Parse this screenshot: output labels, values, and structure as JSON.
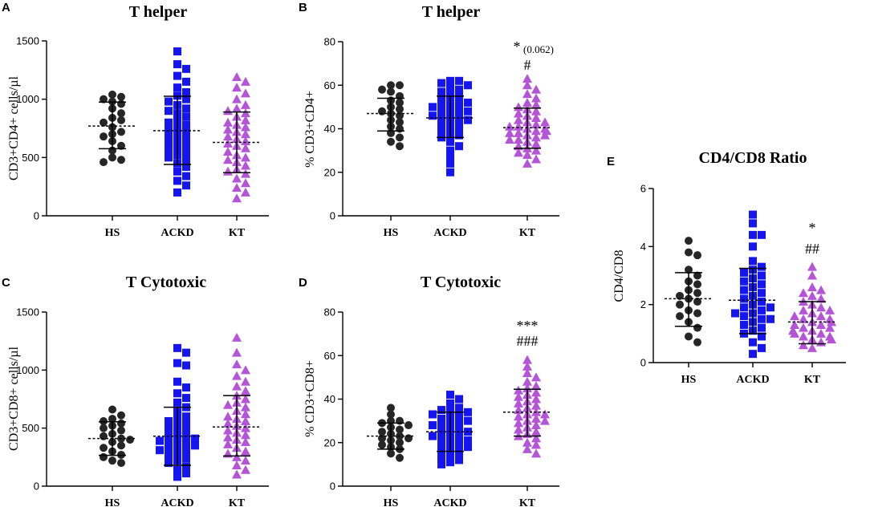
{
  "chart_data": [
    {
      "id": "A",
      "panel_letter": "A",
      "type": "scatter",
      "title": "T helper",
      "xlabel": "",
      "ylabel": "CD3+CD4+ cells/µl",
      "ylim": [
        0,
        1500
      ],
      "yticks": [
        "0",
        "500",
        "1000",
        "1500"
      ],
      "ytick_values": [
        0,
        500,
        1000,
        1500
      ],
      "categories": [
        "HS",
        "ACKD",
        "KT"
      ],
      "series": [
        {
          "name": "HS",
          "marker": "circle",
          "color": "#262626",
          "mean": 770,
          "sd_low": 575,
          "sd_high": 975,
          "values": [
            460,
            480,
            500,
            560,
            600,
            640,
            680,
            700,
            720,
            760,
            800,
            820,
            840,
            880,
            920,
            960,
            980,
            1000,
            1020,
            1040
          ]
        },
        {
          "name": "ACKD",
          "marker": "square",
          "color": "#1515f0",
          "mean": 730,
          "sd_low": 440,
          "sd_high": 1025,
          "values": [
            200,
            260,
            300,
            340,
            380,
            420,
            450,
            480,
            500,
            520,
            540,
            560,
            580,
            600,
            620,
            640,
            660,
            680,
            700,
            720,
            740,
            760,
            780,
            800,
            820,
            850,
            880,
            900,
            920,
            950,
            980,
            1000,
            1030,
            1060,
            1100,
            1150,
            1200,
            1260,
            1300,
            1410
          ]
        },
        {
          "name": "KT",
          "marker": "triangle",
          "color": "#b455d8",
          "mean": 630,
          "sd_low": 370,
          "sd_high": 890,
          "values": [
            150,
            200,
            240,
            280,
            320,
            360,
            380,
            400,
            430,
            460,
            480,
            500,
            520,
            550,
            580,
            600,
            620,
            640,
            660,
            680,
            700,
            720,
            740,
            760,
            780,
            800,
            820,
            850,
            880,
            900,
            920,
            950,
            1000,
            1050,
            1100,
            1150,
            1190
          ]
        }
      ],
      "annotations": {
        "star": "",
        "sub": "",
        "hash": ""
      }
    },
    {
      "id": "B",
      "panel_letter": "B",
      "type": "scatter",
      "title": "T helper",
      "xlabel": "",
      "ylabel": "% CD3+CD4+",
      "ylim": [
        0,
        80
      ],
      "yticks": [
        "0",
        "20",
        "40",
        "60",
        "80"
      ],
      "ytick_values": [
        0,
        20,
        40,
        60,
        80
      ],
      "categories": [
        "HS",
        "ACKD",
        "KT"
      ],
      "series": [
        {
          "name": "HS",
          "marker": "circle",
          "color": "#262626",
          "mean": 47,
          "sd_low": 39,
          "sd_high": 54,
          "values": [
            32,
            34,
            36,
            38,
            40,
            41,
            43,
            44,
            46,
            47,
            48,
            49,
            50,
            52,
            53,
            55,
            57,
            58,
            60,
            60
          ]
        },
        {
          "name": "ACKD",
          "marker": "square",
          "color": "#1515f0",
          "mean": 45,
          "sd_low": 36,
          "sd_high": 55,
          "values": [
            20,
            24,
            27,
            30,
            32,
            34,
            36,
            37,
            38,
            39,
            40,
            41,
            42,
            43,
            44,
            44,
            45,
            46,
            46,
            47,
            48,
            48,
            49,
            50,
            50,
            51,
            52,
            52,
            53,
            54,
            55,
            56,
            57,
            58,
            59,
            60,
            61,
            62,
            62
          ]
        },
        {
          "name": "KT",
          "marker": "triangle",
          "color": "#b455d8",
          "mean": 40.5,
          "sd_low": 31,
          "sd_high": 49.5,
          "values": [
            24,
            26,
            28,
            29,
            30,
            31,
            32,
            33,
            34,
            35,
            35,
            36,
            37,
            37,
            38,
            38,
            39,
            39,
            40,
            40,
            41,
            41,
            42,
            43,
            43,
            44,
            45,
            46,
            47,
            48,
            49,
            50,
            51,
            52,
            54,
            56,
            58,
            60,
            63
          ]
        }
      ],
      "annotations": {
        "star": "*",
        "sub": "(0.062)",
        "hash": "#"
      }
    },
    {
      "id": "C",
      "panel_letter": "C",
      "type": "scatter",
      "title": "T Cytotoxic",
      "xlabel": "",
      "ylabel": "CD3+CD8+ cells/µl",
      "ylim": [
        0,
        1500
      ],
      "yticks": [
        "0",
        "500",
        "1000",
        "1500"
      ],
      "ytick_values": [
        0,
        500,
        1000,
        1500
      ],
      "categories": [
        "HS",
        "ACKD",
        "KT"
      ],
      "series": [
        {
          "name": "HS",
          "marker": "circle",
          "color": "#262626",
          "mean": 410,
          "sd_low": 265,
          "sd_high": 555,
          "values": [
            200,
            220,
            250,
            270,
            300,
            330,
            350,
            380,
            400,
            410,
            430,
            450,
            480,
            500,
            520,
            540,
            560,
            580,
            610,
            660
          ]
        },
        {
          "name": "ACKD",
          "marker": "square",
          "color": "#1515f0",
          "mean": 430,
          "sd_low": 180,
          "sd_high": 680,
          "values": [
            80,
            110,
            140,
            170,
            200,
            220,
            240,
            260,
            280,
            300,
            310,
            320,
            340,
            350,
            360,
            380,
            390,
            400,
            410,
            420,
            440,
            460,
            480,
            500,
            520,
            540,
            560,
            580,
            600,
            640,
            680,
            720,
            760,
            800,
            850,
            900,
            1040,
            1060,
            1150,
            1190
          ]
        },
        {
          "name": "KT",
          "marker": "triangle",
          "color": "#b455d8",
          "mean": 510,
          "sd_low": 260,
          "sd_high": 780,
          "values": [
            100,
            140,
            180,
            220,
            250,
            280,
            300,
            330,
            360,
            380,
            400,
            420,
            440,
            460,
            480,
            500,
            520,
            540,
            560,
            580,
            600,
            620,
            650,
            680,
            700,
            720,
            750,
            780,
            820,
            860,
            900,
            950,
            1000,
            1050,
            1150,
            1280
          ]
        }
      ],
      "annotations": {
        "star": "",
        "sub": "",
        "hash": ""
      }
    },
    {
      "id": "D",
      "panel_letter": "D",
      "type": "scatter",
      "title": "T Cytotoxic",
      "xlabel": "",
      "ylabel": "% CD3+CD8+",
      "ylim": [
        0,
        80
      ],
      "yticks": [
        "0",
        "20",
        "40",
        "60",
        "80"
      ],
      "ytick_values": [
        0,
        20,
        40,
        60,
        80
      ],
      "categories": [
        "HS",
        "ACKD",
        "KT"
      ],
      "series": [
        {
          "name": "HS",
          "marker": "circle",
          "color": "#262626",
          "mean": 23,
          "sd_low": 17,
          "sd_high": 29,
          "values": [
            13,
            15,
            17,
            18,
            19,
            20,
            21,
            22,
            22,
            23,
            24,
            25,
            26,
            27,
            28,
            29,
            30,
            30,
            33,
            36
          ]
        },
        {
          "name": "ACKD",
          "marker": "square",
          "color": "#1515f0",
          "mean": 25,
          "sd_low": 16,
          "sd_high": 34,
          "values": [
            10,
            11,
            12,
            13,
            14,
            15,
            16,
            17,
            18,
            18,
            19,
            20,
            21,
            21,
            22,
            23,
            23,
            24,
            25,
            25,
            26,
            27,
            28,
            28,
            29,
            30,
            30,
            31,
            32,
            33,
            33,
            34,
            35,
            35,
            36,
            38,
            40,
            42
          ]
        },
        {
          "name": "KT",
          "marker": "triangle",
          "color": "#b455d8",
          "mean": 34,
          "sd_low": 23,
          "sd_high": 44.5,
          "values": [
            15,
            17,
            19,
            20,
            22,
            23,
            24,
            25,
            26,
            27,
            28,
            29,
            30,
            30,
            31,
            32,
            33,
            33,
            34,
            35,
            36,
            37,
            38,
            39,
            40,
            41,
            42,
            43,
            44,
            45,
            46,
            48,
            50,
            52,
            55,
            58
          ]
        }
      ],
      "annotations": {
        "star": "***",
        "sub": "",
        "hash": "###"
      }
    },
    {
      "id": "E",
      "panel_letter": "E",
      "type": "scatter",
      "title": "CD4/CD8 Ratio",
      "xlabel": "",
      "ylabel": "CD4/CD8",
      "ylim": [
        0,
        6
      ],
      "yticks": [
        "0",
        "2",
        "4",
        "6"
      ],
      "ytick_values": [
        0,
        2,
        4,
        6
      ],
      "categories": [
        "HS",
        "ACKD",
        "KT"
      ],
      "series": [
        {
          "name": "HS",
          "marker": "circle",
          "color": "#262626",
          "mean": 2.2,
          "sd_low": 1.25,
          "sd_high": 3.1,
          "values": [
            0.7,
            0.9,
            1.2,
            1.4,
            1.6,
            1.7,
            1.8,
            2.0,
            2.1,
            2.2,
            2.3,
            2.4,
            2.5,
            2.7,
            2.8,
            3.0,
            3.2,
            3.7,
            3.8,
            4.2
          ]
        },
        {
          "name": "ACKD",
          "marker": "square",
          "color": "#1515f0",
          "mean": 2.15,
          "sd_low": 1.0,
          "sd_high": 3.25,
          "values": [
            0.3,
            0.5,
            0.7,
            0.9,
            1.0,
            1.1,
            1.2,
            1.3,
            1.4,
            1.5,
            1.5,
            1.6,
            1.7,
            1.7,
            1.8,
            1.9,
            1.9,
            2.0,
            2.1,
            2.2,
            2.3,
            2.4,
            2.5,
            2.6,
            2.7,
            2.8,
            2.9,
            3.0,
            3.1,
            3.2,
            3.3,
            3.5,
            4.0,
            4.4,
            4.4,
            4.8,
            5.1
          ]
        },
        {
          "name": "KT",
          "marker": "triangle",
          "color": "#b455d8",
          "mean": 1.4,
          "sd_low": 0.65,
          "sd_high": 2.1,
          "values": [
            0.5,
            0.6,
            0.7,
            0.8,
            0.8,
            0.9,
            0.9,
            1.0,
            1.0,
            1.1,
            1.1,
            1.2,
            1.2,
            1.3,
            1.3,
            1.4,
            1.4,
            1.5,
            1.5,
            1.6,
            1.6,
            1.7,
            1.8,
            1.8,
            1.9,
            2.0,
            2.1,
            2.2,
            2.3,
            2.4,
            2.5,
            2.6,
            3.0,
            3.3
          ]
        }
      ],
      "annotations": {
        "star": "*",
        "sub": "",
        "hash": "##"
      }
    }
  ]
}
